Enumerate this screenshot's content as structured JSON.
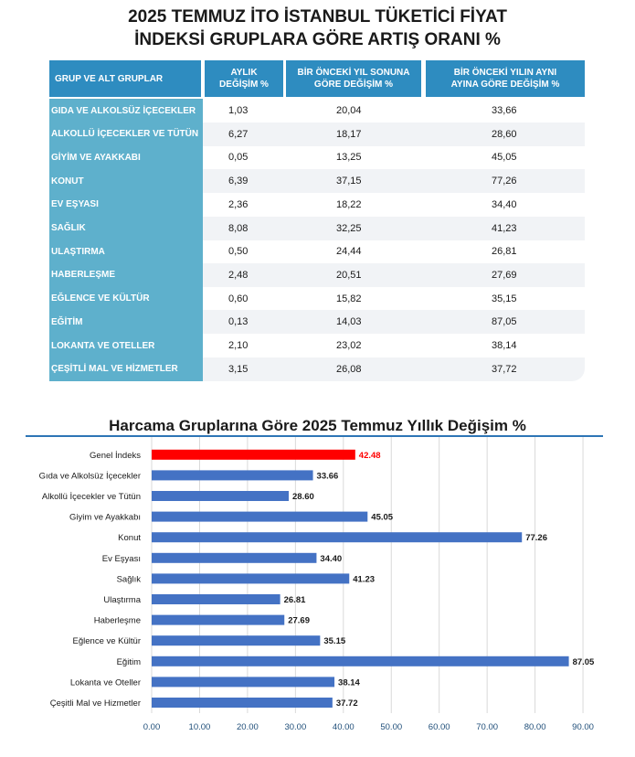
{
  "table": {
    "title_line1": "2025 TEMMUZ İTO İSTANBUL TÜKETİCİ FİYAT",
    "title_line2": "İNDEKSİ GRUPLARA GÖRE ARTIŞ ORANI %",
    "headers": [
      "GRUP VE ALT GRUPLAR",
      "AYLIK\nDEĞİŞİM %",
      "BİR ÖNCEKİ YIL SONUNA\nGÖRE DEĞİŞİM %",
      "BİR ÖNCEKİ YILIN AYNI\nAYINA GÖRE DEĞİŞİM %"
    ],
    "rows": [
      {
        "group": "GIDA VE ALKOLSÜZ İÇECEKLER",
        "monthly": "1,03",
        "ytd": "20,04",
        "yoy": "33,66"
      },
      {
        "group": "ALKOLLÜ İÇECEKLER VE TÜTÜN",
        "monthly": "6,27",
        "ytd": "18,17",
        "yoy": "28,60"
      },
      {
        "group": "GİYİM VE AYAKKABI",
        "monthly": "0,05",
        "ytd": "13,25",
        "yoy": "45,05"
      },
      {
        "group": "KONUT",
        "monthly": "6,39",
        "ytd": "37,15",
        "yoy": "77,26"
      },
      {
        "group": "EV EŞYASI",
        "monthly": "2,36",
        "ytd": "18,22",
        "yoy": "34,40"
      },
      {
        "group": "SAĞLIK",
        "monthly": "8,08",
        "ytd": "32,25",
        "yoy": "41,23"
      },
      {
        "group": "ULAŞTIRMA",
        "monthly": "0,50",
        "ytd": "24,44",
        "yoy": "26,81"
      },
      {
        "group": "HABERLEŞME",
        "monthly": "2,48",
        "ytd": "20,51",
        "yoy": "27,69"
      },
      {
        "group": "EĞLENCE VE KÜLTÜR",
        "monthly": "0,60",
        "ytd": "15,82",
        "yoy": "35,15"
      },
      {
        "group": "EĞİTİM",
        "monthly": "0,13",
        "ytd": "14,03",
        "yoy": "87,05"
      },
      {
        "group": "LOKANTA VE OTELLER",
        "monthly": "2,10",
        "ytd": "23,02",
        "yoy": "38,14"
      },
      {
        "group": "ÇEŞİTLİ MAL VE HİZMETLER",
        "monthly": "3,15",
        "ytd": "26,08",
        "yoy": "37,72"
      }
    ],
    "colors": {
      "header": "#2e8cc0",
      "label_cell": "#5eb0cc"
    }
  },
  "chart_data": {
    "type": "bar",
    "orientation": "horizontal",
    "title": "Harcama Gruplarına Göre 2025 Temmuz Yıllık Değişim %",
    "categories": [
      "Genel İndeks",
      "Gıda ve Alkolsüz İçecekler",
      "Alkollü İçecekler ve Tütün",
      "Giyim ve Ayakkabı",
      "Konut",
      "Ev Eşyası",
      "Sağlık",
      "Ulaştırma",
      "Haberleşme",
      "Eğlence ve Kültür",
      "Eğitim",
      "Lokanta ve Oteller",
      "Çeşitli Mal ve Hizmetler"
    ],
    "values": [
      42.48,
      33.66,
      28.6,
      45.05,
      77.26,
      34.4,
      41.23,
      26.81,
      27.69,
      35.15,
      87.05,
      38.14,
      37.72
    ],
    "value_labels": [
      "42.48",
      "33.66",
      "28.60",
      "45.05",
      "77.26",
      "34.40",
      "41.23",
      "26.81",
      "27.69",
      "35.15",
      "87.05",
      "38.14",
      "37.72"
    ],
    "xlim": [
      0,
      90
    ],
    "xticks": [
      "0.00",
      "10.00",
      "20.00",
      "30.00",
      "40.00",
      "50.00",
      "60.00",
      "70.00",
      "80.00",
      "90.00"
    ],
    "grid": true,
    "colors": {
      "bar": "#4472c4",
      "highlight": "#ff0000",
      "highlight_label": "#ff0000",
      "grid": "#d9d9d9",
      "tick": "#1f4e79"
    }
  }
}
